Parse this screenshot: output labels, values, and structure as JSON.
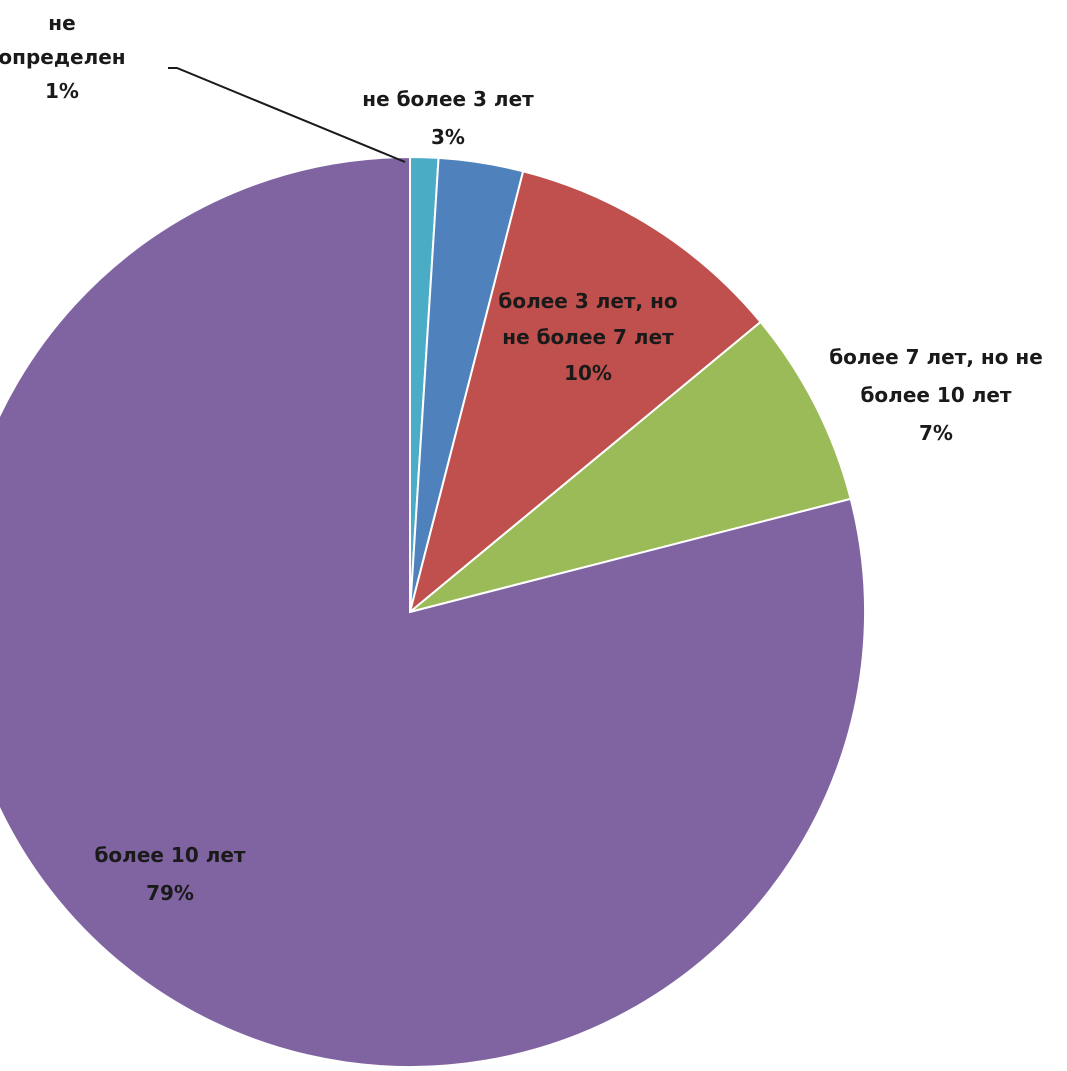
{
  "chart_data": {
    "type": "pie",
    "start_angle_deg": 0,
    "direction": "clockwise",
    "slices": [
      {
        "label": [
          "не",
          "определен"
        ],
        "value_text": "1%",
        "value": 1,
        "color": "#4bacc6"
      },
      {
        "label": [
          "не более 3 лет"
        ],
        "value_text": "3%",
        "value": 3,
        "color": "#4f81bd"
      },
      {
        "label": [
          "более 3 лет, но",
          "не более 7 лет"
        ],
        "value_text": "10%",
        "value": 10,
        "color": "#c0504d"
      },
      {
        "label": [
          "более 7 лет, но не",
          "более 10 лет"
        ],
        "value_text": "7%",
        "value": 7,
        "color": "#9bbb59"
      },
      {
        "label": [
          "более 10 лет"
        ],
        "value_text": "79%",
        "value": 79,
        "color": "#8064a2"
      }
    ]
  }
}
